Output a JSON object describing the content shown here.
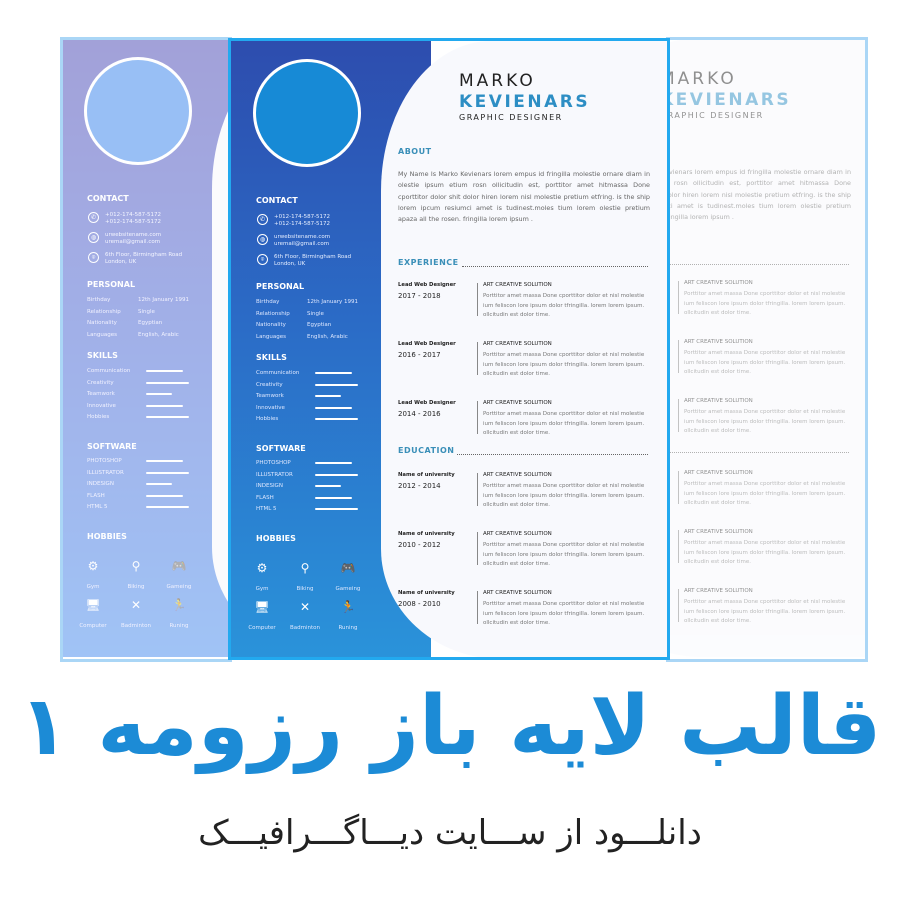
{
  "resume": {
    "first_name": "MARKO",
    "last_name": "KEVIENARS",
    "role": "GRAPHIC DESIGNER",
    "accent_color": "#2d8ec4",
    "sidebar_color": "#2b6bc6",
    "contact": {
      "heading": "CONTACT",
      "phone1": "+012-174-587-5172",
      "phone2": "+012-174-587-5172",
      "website": "urwebsitename.com",
      "email": "uremail@gmail.com",
      "address1": "6th Floor, Birmingham Road",
      "address2": "London, UK"
    },
    "personal": {
      "heading": "PERSONAL",
      "rows": [
        {
          "label": "Birthday",
          "value": "12th January 1991"
        },
        {
          "label": "Relationship",
          "value": "Single"
        },
        {
          "label": "Nationality",
          "value": "Egyptian"
        },
        {
          "label": "Languages",
          "value": "English, Arabic"
        }
      ]
    },
    "skills": {
      "heading": "SKILLS",
      "items": [
        {
          "label": "Communication",
          "level": 0.85
        },
        {
          "label": "Creativity",
          "level": 1.0
        },
        {
          "label": "Teamwork",
          "level": 0.6
        },
        {
          "label": "Innovative",
          "level": 0.85
        },
        {
          "label": "Hobbies",
          "level": 1.0
        }
      ]
    },
    "software": {
      "heading": "SOFTWARE",
      "items": [
        {
          "label": "PHOTOSHOP",
          "level": 0.85
        },
        {
          "label": "ILLUSTRATOR",
          "level": 1.0
        },
        {
          "label": "INDESIGN",
          "level": 0.6
        },
        {
          "label": "FLASH",
          "level": 0.85
        },
        {
          "label": "HTML 5",
          "level": 1.0
        }
      ]
    },
    "hobbies": {
      "heading": "HOBBIES",
      "items": [
        {
          "label": "Gym",
          "icon": "dumbbell-icon"
        },
        {
          "label": "Biking",
          "icon": "bike-icon"
        },
        {
          "label": "Gameing",
          "icon": "gamepad-icon"
        },
        {
          "label": "Computer",
          "icon": "computer-icon"
        },
        {
          "label": "Badminton",
          "icon": "badminton-icon"
        },
        {
          "label": "Runing",
          "icon": "running-icon"
        }
      ]
    },
    "about": {
      "heading": "ABOUT",
      "text": "My Name Is Marko Kevienars lorem empus id fringilla molestie ornare diam in olestie ipsum etium rosn ollicitudin est, porttitor amet hitmassa Done cporttitor dolor shit dolor hiren lorem nisl molestie pretium etfring. is the ship lorem ipcum resiumci amet is tudinest.moles tium lorem olestie pretium apaza all the rosen.  fringilla lorem ipsum ."
    },
    "experience": {
      "heading": "EXPERIENCE",
      "items": [
        {
          "title": "Lead  Web Designer",
          "years": "2017 - 2018",
          "company": "ART CREATIVE SOLUTION",
          "desc": "Porttitor amet massa Done cporttitor dolor et nisl molestie ium feliscon lore  ipsum dolor tfringilla. lorem lorem ipsum. ollcitudin est dolor time."
        },
        {
          "title": "Lead  Web Designer",
          "years": "2016 - 2017",
          "company": "ART CREATIVE SOLUTION",
          "desc": "Porttitor amet massa Done cporttitor dolor et nisl molestie ium feliscon lore  ipsum dolor tfringilla. lorem lorem ipsum. ollcitudin est dolor time."
        },
        {
          "title": "Lead  Web Designer",
          "years": "2014 - 2016",
          "company": "ART CREATIVE SOLUTION",
          "desc": "Porttitor amet massa Done cporttitor dolor et nisl molestie ium feliscon lore  ipsum dolor tfringilla. lorem lorem ipsum. ollcitudin est dolor time."
        }
      ]
    },
    "education": {
      "heading": "EDUCATION",
      "items": [
        {
          "title": "Name of university",
          "years": "2012 - 2014",
          "company": "ART CREATIVE SOLUTION",
          "desc": "Porttitor amet massa Done cporttitor dolor et nisl molestie ium feliscon lore  ipsum dolor tfringilla. lorem lorem ipsum. ollcitudin est dolor time."
        },
        {
          "title": "Name of university",
          "years": "2010 - 2012",
          "company": "ART CREATIVE SOLUTION",
          "desc": "Porttitor amet massa Done cporttitor dolor et nisl molestie ium feliscon lore  ipsum dolor tfringilla. lorem lorem ipsum. ollcitudin est dolor time."
        },
        {
          "title": "Name of university",
          "years": "2008 - 2010",
          "company": "ART CREATIVE SOLUTION",
          "desc": "Porttitor amet massa Done cporttitor dolor et nisl molestie ium feliscon lore  ipsum dolor tfringilla. lorem lorem ipsum. ollcitudin est dolor time."
        }
      ]
    }
  },
  "banner": {
    "title": "قالب لایه باز رزومه ۱",
    "subtitle": "دانلـــود از ســـایت دیـــاگـــرافیـــک",
    "title_color": "#1c8bd6"
  }
}
